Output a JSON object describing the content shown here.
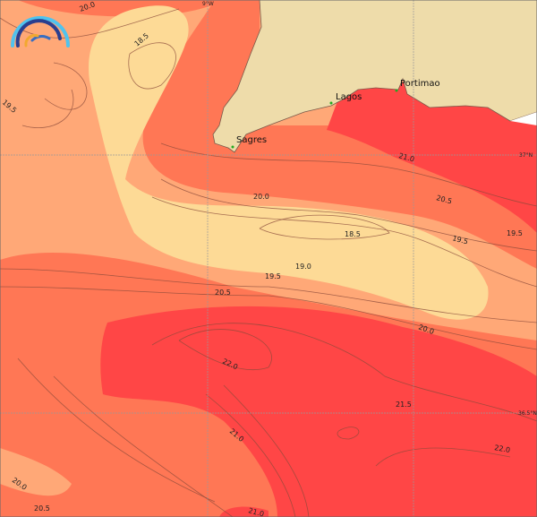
{
  "map": {
    "contour_labels": [
      "20.0",
      "18.5",
      "19.5",
      "21.0",
      "20.5",
      "19.5",
      "19.5",
      "18.5",
      "20.0",
      "19.0",
      "19.5",
      "20.5",
      "20.0",
      "22.0",
      "21.5",
      "21.0",
      "22.0",
      "20.0",
      "20.5",
      "21.0"
    ],
    "places": [
      "Sagres",
      "Lagos",
      "Portimao"
    ],
    "coordinates": {
      "lon_label": "9°W",
      "lat_top": "37°N",
      "lat_bottom": "36.5°N"
    },
    "colors": {
      "land": "#EEDCAA",
      "band_18_19": "#FDDA96",
      "band_19_20": "#FFA877",
      "band_20_21": "#FF7755",
      "band_21_plus": "#FF4646",
      "place_marker": "#22aa22"
    },
    "logo_icon": "rainbow-arcs-logo"
  }
}
